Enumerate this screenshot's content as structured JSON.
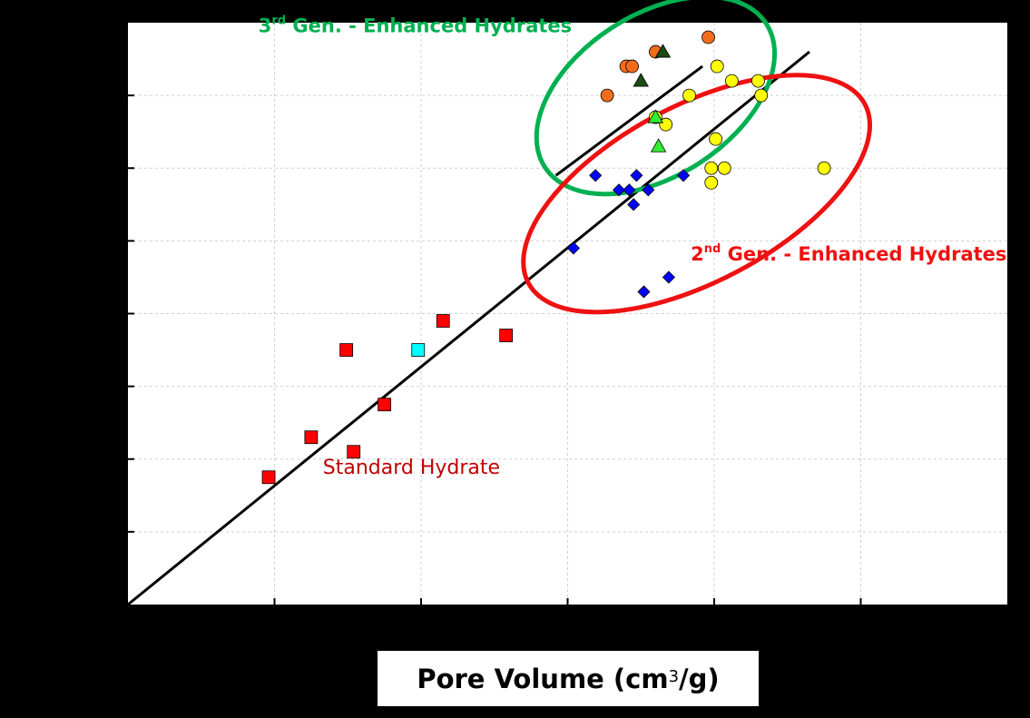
{
  "chart_data": {
    "type": "scatter",
    "xlabel": {
      "main": "Pore Volume (cm",
      "sup": "3",
      "tail": "/g)"
    },
    "ylabel": "",
    "xlim": [
      0,
      6
    ],
    "ylim": [
      0,
      8
    ],
    "grid": true,
    "x_tick_count": 6,
    "y_tick_count": 8,
    "series": [
      {
        "marker": "square",
        "color": "#ff0000",
        "points": [
          [
            0.96,
            1.75
          ],
          [
            1.25,
            2.3
          ],
          [
            1.49,
            3.5
          ],
          [
            1.54,
            2.1
          ],
          [
            1.75,
            2.75
          ],
          [
            2.15,
            3.9
          ],
          [
            2.58,
            3.7
          ]
        ]
      },
      {
        "marker": "square",
        "color": "#00ffff",
        "points": [
          [
            1.98,
            3.5
          ]
        ]
      },
      {
        "marker": "diamond",
        "color": "#0000ff",
        "points": [
          [
            3.04,
            4.9
          ],
          [
            3.19,
            5.9
          ],
          [
            3.35,
            5.7
          ],
          [
            3.42,
            5.7
          ],
          [
            3.45,
            5.5
          ],
          [
            3.47,
            5.9
          ],
          [
            3.52,
            4.3
          ],
          [
            3.55,
            5.7
          ],
          [
            3.69,
            4.5
          ],
          [
            3.79,
            5.9
          ]
        ]
      },
      {
        "marker": "circle",
        "color": "#ffff00",
        "points": [
          [
            3.6,
            6.7
          ],
          [
            3.67,
            6.6
          ],
          [
            3.83,
            7.0
          ],
          [
            3.98,
            6.0
          ],
          [
            3.98,
            5.8
          ],
          [
            4.01,
            6.4
          ],
          [
            4.02,
            7.4
          ],
          [
            4.07,
            6.0
          ],
          [
            4.12,
            7.2
          ],
          [
            4.3,
            7.2
          ],
          [
            4.32,
            7.0
          ],
          [
            4.75,
            6.0
          ]
        ]
      },
      {
        "marker": "circle",
        "color": "#f26c1c",
        "points": [
          [
            3.27,
            7.0
          ],
          [
            3.4,
            7.4
          ],
          [
            3.44,
            7.4
          ],
          [
            3.6,
            7.6
          ],
          [
            3.96,
            7.8
          ]
        ]
      },
      {
        "marker": "triangle",
        "color": "#1c4a12",
        "points": [
          [
            3.5,
            7.2
          ],
          [
            3.65,
            7.6
          ]
        ]
      },
      {
        "marker": "triangle",
        "color": "#33ee33",
        "points": [
          [
            3.6,
            6.7
          ],
          [
            3.62,
            6.3
          ]
        ]
      }
    ],
    "fit_lines": [
      {
        "color": "#000000",
        "from": [
          0,
          0
        ],
        "to": [
          4.65,
          7.6
        ]
      },
      {
        "color": "#000000",
        "from": [
          2.92,
          5.9
        ],
        "to": [
          3.92,
          7.4
        ]
      }
    ],
    "ellipses": [
      {
        "color": "#00b050",
        "cx": 3.6,
        "cy": 7.0,
        "rx": 0.9,
        "ry": 0.55,
        "angle_deg": -33
      },
      {
        "color": "#ee1111",
        "cx": 3.88,
        "cy": 5.65,
        "rx": 1.3,
        "ry": 0.6,
        "angle_deg": -28
      }
    ],
    "annotations": [
      {
        "prefix": "3",
        "sup": "rd",
        "text": " Gen. - Enhanced Hydrates",
        "color": "#00b050",
        "x": 0.89,
        "y": 7.87
      },
      {
        "prefix": "2",
        "sup": "nd",
        "text": " Gen. - Enhanced Hydrates",
        "color": "#ee1111",
        "x": 3.84,
        "y": 4.73
      },
      {
        "prefix": "",
        "sup": "",
        "text": "Standard Hydrate",
        "color": "#c00000",
        "x": 1.33,
        "y": 1.8
      }
    ]
  }
}
